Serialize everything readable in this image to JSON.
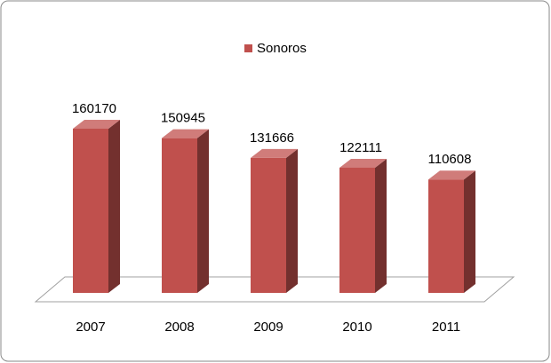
{
  "chart_data": {
    "type": "bar3d",
    "categories": [
      "2007",
      "2008",
      "2009",
      "2010",
      "2011"
    ],
    "series": [
      {
        "name": "Sonoros",
        "color": "#c0504d",
        "values": [
          160170,
          150945,
          131666,
          122111,
          110608
        ]
      }
    ]
  }
}
